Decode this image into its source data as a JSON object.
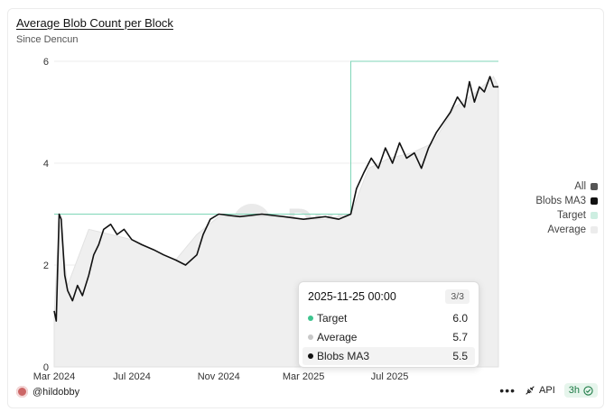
{
  "chart_data": {
    "type": "line",
    "title": "Average Blob Count per Block",
    "subtitle": "Since Dencun",
    "x_ticks": [
      "Mar 2024",
      "Jul 2024",
      "Nov 2024",
      "Mar 2025",
      "Jul 2025"
    ],
    "y_ticks": [
      "0",
      "2",
      "4",
      "6"
    ],
    "ylim": [
      0,
      6
    ],
    "xlim": [
      "2024-03-13",
      "2025-12-02"
    ],
    "grid": true,
    "legend_position": "right",
    "series": [
      {
        "name": "Target",
        "color": "#7fd6b8",
        "points": [
          [
            "2024-03-13",
            3
          ],
          [
            "2025-05-07",
            3
          ],
          [
            "2025-05-07",
            6
          ],
          [
            "2025-12-02",
            6
          ]
        ]
      },
      {
        "name": "Average",
        "color": "#e6e6e6",
        "points": [
          [
            "2024-03-13",
            1.0
          ],
          [
            "2024-03-20",
            2.9
          ],
          [
            "2024-04-01",
            1.6
          ],
          [
            "2024-05-01",
            2.7
          ],
          [
            "2024-06-01",
            2.6
          ],
          [
            "2024-07-01",
            2.5
          ],
          [
            "2024-08-01",
            2.3
          ],
          [
            "2024-09-01",
            2.1
          ],
          [
            "2024-10-01",
            2.6
          ],
          [
            "2024-11-01",
            2.95
          ],
          [
            "2024-12-01",
            2.95
          ],
          [
            "2025-01-01",
            2.95
          ],
          [
            "2025-02-01",
            2.95
          ],
          [
            "2025-03-01",
            2.9
          ],
          [
            "2025-04-01",
            2.9
          ],
          [
            "2025-05-07",
            3.0
          ],
          [
            "2025-06-01",
            3.9
          ],
          [
            "2025-07-01",
            4.1
          ],
          [
            "2025-08-01",
            4.2
          ],
          [
            "2025-09-01",
            4.4
          ],
          [
            "2025-10-01",
            5.1
          ],
          [
            "2025-11-01",
            5.4
          ],
          [
            "2025-11-25",
            5.7
          ],
          [
            "2025-12-02",
            5.5
          ]
        ]
      },
      {
        "name": "Blobs MA3",
        "color": "#111111",
        "points": [
          [
            "2024-03-13",
            1.1
          ],
          [
            "2024-03-16",
            0.9
          ],
          [
            "2024-03-20",
            3.0
          ],
          [
            "2024-03-23",
            2.9
          ],
          [
            "2024-03-28",
            1.8
          ],
          [
            "2024-04-01",
            1.5
          ],
          [
            "2024-04-08",
            1.3
          ],
          [
            "2024-04-15",
            1.6
          ],
          [
            "2024-04-22",
            1.4
          ],
          [
            "2024-05-01",
            1.8
          ],
          [
            "2024-05-08",
            2.2
          ],
          [
            "2024-05-15",
            2.4
          ],
          [
            "2024-05-22",
            2.7
          ],
          [
            "2024-06-01",
            2.8
          ],
          [
            "2024-06-10",
            2.6
          ],
          [
            "2024-06-20",
            2.7
          ],
          [
            "2024-07-01",
            2.5
          ],
          [
            "2024-07-15",
            2.4
          ],
          [
            "2024-08-01",
            2.3
          ],
          [
            "2024-08-15",
            2.2
          ],
          [
            "2024-09-01",
            2.1
          ],
          [
            "2024-09-15",
            2.0
          ],
          [
            "2024-10-01",
            2.2
          ],
          [
            "2024-10-10",
            2.6
          ],
          [
            "2024-10-20",
            2.9
          ],
          [
            "2024-11-01",
            3.0
          ],
          [
            "2024-12-01",
            2.95
          ],
          [
            "2025-01-01",
            3.0
          ],
          [
            "2025-02-01",
            2.95
          ],
          [
            "2025-03-01",
            2.9
          ],
          [
            "2025-04-01",
            2.95
          ],
          [
            "2025-04-20",
            2.9
          ],
          [
            "2025-05-07",
            3.0
          ],
          [
            "2025-05-15",
            3.5
          ],
          [
            "2025-05-25",
            3.8
          ],
          [
            "2025-06-05",
            4.1
          ],
          [
            "2025-06-15",
            3.9
          ],
          [
            "2025-06-25",
            4.3
          ],
          [
            "2025-07-05",
            4.0
          ],
          [
            "2025-07-15",
            4.4
          ],
          [
            "2025-07-25",
            4.1
          ],
          [
            "2025-08-05",
            4.2
          ],
          [
            "2025-08-15",
            3.9
          ],
          [
            "2025-08-25",
            4.3
          ],
          [
            "2025-09-05",
            4.6
          ],
          [
            "2025-09-15",
            4.8
          ],
          [
            "2025-09-25",
            5.0
          ],
          [
            "2025-10-05",
            5.3
          ],
          [
            "2025-10-15",
            5.1
          ],
          [
            "2025-10-22",
            5.6
          ],
          [
            "2025-10-29",
            5.2
          ],
          [
            "2025-11-05",
            5.5
          ],
          [
            "2025-11-12",
            5.4
          ],
          [
            "2025-11-20",
            5.7
          ],
          [
            "2025-11-25",
            5.5
          ],
          [
            "2025-12-02",
            5.5
          ]
        ]
      }
    ],
    "legend": [
      {
        "label": "All",
        "color": "#555555"
      },
      {
        "label": "Blobs MA3",
        "color": "#111111"
      },
      {
        "label": "Target",
        "color": "#cdeee1"
      },
      {
        "label": "Average",
        "color": "#ececec"
      }
    ],
    "tooltip": {
      "date": "2025-11-25 00:00",
      "page": "3/3",
      "rows": [
        {
          "label": "Target",
          "value": "6.0",
          "color": "#3dc48e"
        },
        {
          "label": "Average",
          "value": "5.7",
          "color": "#c8c8c8"
        },
        {
          "label": "Blobs MA3",
          "value": "5.5",
          "color": "#111111"
        }
      ]
    },
    "watermark": "Dune"
  },
  "footer": {
    "author": "@hildobby",
    "more": "•••",
    "api": "API",
    "refresh": "3h"
  }
}
